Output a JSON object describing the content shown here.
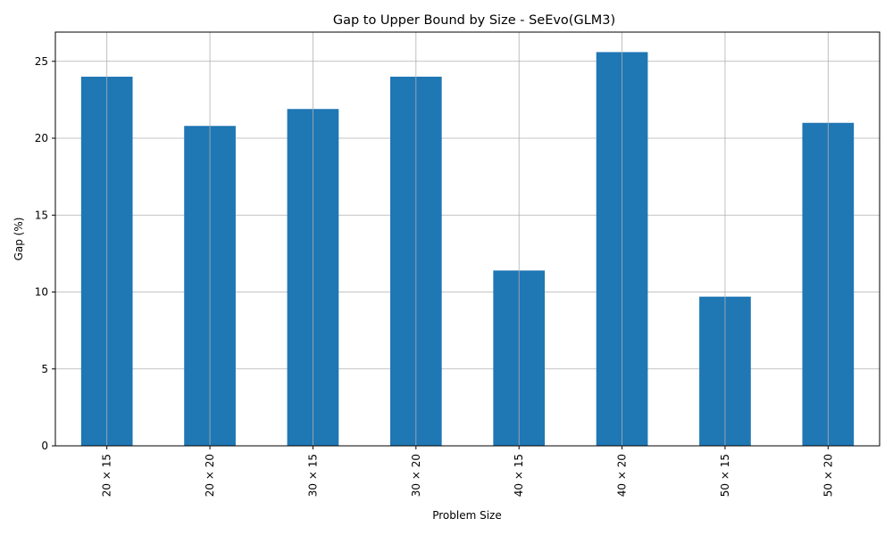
{
  "chart_data": {
    "type": "bar",
    "title": "Gap to Upper Bound by Size - SeEvo(GLM3)",
    "xlabel": "Problem Size",
    "ylabel": "Gap (%)",
    "categories": [
      "20 × 15",
      "20 × 20",
      "30 × 15",
      "30 × 20",
      "40 × 15",
      "40 × 20",
      "50 × 15",
      "50 × 20"
    ],
    "values": [
      24.0,
      20.8,
      21.9,
      24.0,
      11.4,
      25.6,
      9.7,
      21.0
    ],
    "ylim": [
      0,
      26.9
    ],
    "yticks": [
      0,
      5,
      10,
      15,
      20,
      25
    ],
    "grid": true,
    "bar_color": "#1f77b4"
  }
}
